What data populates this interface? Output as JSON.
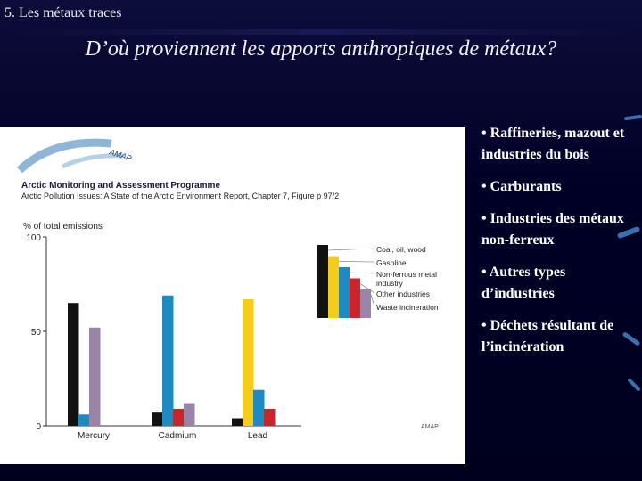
{
  "slide": {
    "header": "5. Les métaux traces",
    "title": "D’où proviennent les apports anthropiques de métaux?"
  },
  "bullets": [
    "• Raffineries, mazout et industries du bois",
    "• Carburants",
    "• Industries des métaux non-ferreux",
    "• Autres types d’industries",
    "• Déchets résultant de l’incinération"
  ],
  "figure": {
    "logo_text": "AMAP",
    "source_title": "Arctic Monitoring and Assessment Programme",
    "source_subtitle": "Arctic Pollution Issues: A State of the Arctic Environment Report, Chapter 7, Figure p 97/2",
    "credit": "AMAP"
  },
  "chart_data": {
    "type": "bar",
    "ylabel": "% of total emissions",
    "ylim": [
      0,
      100
    ],
    "yticks": [
      0,
      50,
      100
    ],
    "categories": [
      "Mercury",
      "Cadmium",
      "Lead"
    ],
    "series": [
      {
        "name": "Coal, oil, wood",
        "color": "#111111",
        "values": [
          65,
          7,
          4
        ]
      },
      {
        "name": "Gasoline",
        "color": "#f5cc1b",
        "values": [
          0,
          0,
          67
        ]
      },
      {
        "name": "Non-ferrous metal industry",
        "color": "#1f8ac0",
        "values": [
          6,
          69,
          19
        ]
      },
      {
        "name": "Other industries",
        "color": "#c8262c",
        "values": [
          0,
          9,
          9
        ]
      },
      {
        "name": "Waste incineration",
        "color": "#9a84a8",
        "values": [
          52,
          12,
          0
        ]
      }
    ]
  }
}
